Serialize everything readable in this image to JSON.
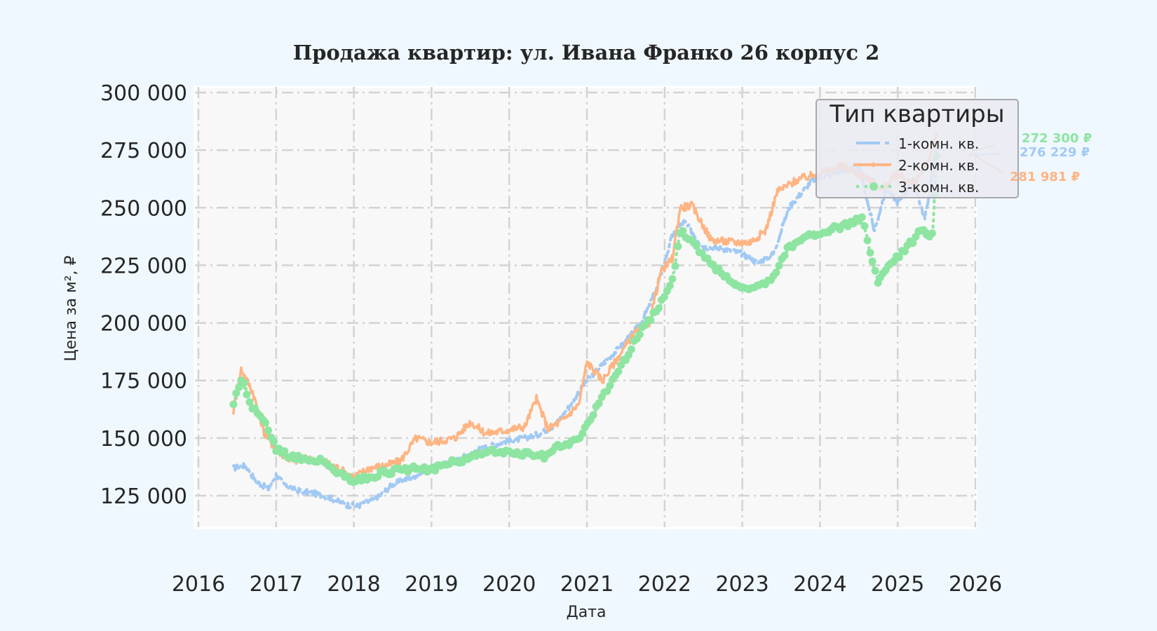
{
  "chart_data": {
    "type": "line",
    "title": "Продажа квартир: ул. Ивана Франко 26 корпус 2",
    "xlabel": "Дата",
    "ylabel": "Цена за м², ₽",
    "xlim": [
      2016.0,
      2026.0
    ],
    "ylim": [
      111000,
      302000
    ],
    "x_ticks": [
      "2016",
      "2017",
      "2018",
      "2019",
      "2020",
      "2021",
      "2022",
      "2023",
      "2024",
      "2025",
      "2026"
    ],
    "y_ticks": [
      "125 000",
      "150 000",
      "175 000",
      "200 000",
      "225 000",
      "250 000",
      "275 000",
      "300 000"
    ],
    "y_tick_values": [
      125000,
      150000,
      175000,
      200000,
      225000,
      250000,
      275000,
      300000
    ],
    "grid": true,
    "legend": {
      "title": "Тип квартиры",
      "position": "upper right"
    },
    "series": [
      {
        "name": "1-комн. кв.",
        "color": "#a1c9f4",
        "style": "dashdot",
        "x": [
          2016.45,
          2016.6,
          2016.75,
          2016.9,
          2017.0,
          2017.1,
          2017.3,
          2017.5,
          2017.7,
          2017.9,
          2018.05,
          2018.3,
          2018.5,
          2018.75,
          2019.0,
          2019.3,
          2019.6,
          2019.9,
          2020.2,
          2020.4,
          2020.6,
          2020.8,
          2020.95,
          2021.2,
          2021.5,
          2021.7,
          2021.9,
          2022.1,
          2022.25,
          2022.5,
          2022.8,
          2023.0,
          2023.2,
          2023.4,
          2023.6,
          2023.9,
          2024.2,
          2024.5,
          2024.7,
          2024.85,
          2025.0,
          2025.2,
          2025.35,
          2025.5
        ],
        "values": [
          137000,
          138000,
          131000,
          128000,
          134000,
          130000,
          127000,
          126000,
          124000,
          121000,
          120500,
          124000,
          130000,
          133000,
          137000,
          140000,
          145000,
          148000,
          150000,
          152000,
          156000,
          165000,
          173000,
          182000,
          192000,
          200000,
          215000,
          238000,
          244000,
          233000,
          232000,
          230000,
          226000,
          230000,
          250000,
          262000,
          265000,
          268000,
          240000,
          258000,
          252000,
          262000,
          245000,
          276229
        ]
      },
      {
        "name": "2-комн. кв.",
        "color": "#ffb482",
        "style": "solid-with-markers",
        "x": [
          2016.45,
          2016.55,
          2016.7,
          2016.85,
          2017.0,
          2017.2,
          2017.4,
          2017.6,
          2017.8,
          2018.0,
          2018.2,
          2018.4,
          2018.6,
          2018.8,
          2019.0,
          2019.3,
          2019.5,
          2019.7,
          2019.9,
          2020.2,
          2020.35,
          2020.5,
          2020.7,
          2020.9,
          2021.0,
          2021.2,
          2021.4,
          2021.6,
          2021.8,
          2021.95,
          2022.1,
          2022.2,
          2022.35,
          2022.6,
          2022.9,
          2023.1,
          2023.3,
          2023.45,
          2023.7,
          2024.0,
          2024.3,
          2024.6,
          2024.8,
          2025.0,
          2025.2,
          2025.4,
          2025.5
        ],
        "values": [
          162000,
          180000,
          170000,
          152000,
          145000,
          140000,
          141000,
          140000,
          137000,
          133000,
          137000,
          138000,
          140000,
          150000,
          148000,
          150000,
          157000,
          152000,
          153000,
          155000,
          167000,
          154000,
          158000,
          165000,
          183000,
          175000,
          185000,
          195000,
          200000,
          222000,
          228000,
          250000,
          251000,
          236000,
          235000,
          235000,
          240000,
          257000,
          262000,
          265000,
          268000,
          263000,
          258000,
          265000,
          260000,
          270000,
          281981
        ]
      },
      {
        "name": "3-комн. кв.",
        "color": "#8de5a1",
        "style": "dotted-with-markers",
        "x": [
          2016.45,
          2016.55,
          2016.7,
          2016.85,
          2017.0,
          2017.2,
          2017.4,
          2017.6,
          2017.8,
          2018.0,
          2018.2,
          2018.4,
          2018.6,
          2018.8,
          2019.0,
          2019.3,
          2019.5,
          2019.7,
          2019.9,
          2020.1,
          2020.3,
          2020.45,
          2020.6,
          2020.8,
          2020.95,
          2021.2,
          2021.5,
          2021.7,
          2021.9,
          2022.1,
          2022.2,
          2022.35,
          2022.6,
          2022.8,
          2023.0,
          2023.2,
          2023.4,
          2023.6,
          2023.85,
          2024.1,
          2024.3,
          2024.55,
          2024.65,
          2024.75,
          2024.9,
          2025.1,
          2025.3,
          2025.45,
          2025.5
        ],
        "values": [
          165000,
          176000,
          163000,
          157000,
          145000,
          142000,
          141000,
          140000,
          135000,
          131000,
          133000,
          135000,
          136000,
          137000,
          136000,
          140000,
          141000,
          145000,
          144000,
          143000,
          143000,
          142000,
          146000,
          148000,
          152000,
          168000,
          185000,
          197000,
          205000,
          218000,
          240000,
          236000,
          225000,
          220000,
          215000,
          216000,
          220000,
          233000,
          238000,
          240000,
          242000,
          246000,
          230000,
          218000,
          225000,
          232000,
          240000,
          238000,
          272300
        ]
      }
    ],
    "annotations": [
      {
        "text": "272 300 ₽",
        "color": "#8de5a1",
        "series": "3-комн. кв."
      },
      {
        "text": "276 229 ₽",
        "color": "#a1c9f4",
        "series": "1-комн. кв."
      },
      {
        "text": "281 981 ₽",
        "color": "#ffb482",
        "series": "2-комн. кв."
      }
    ]
  },
  "labels": {
    "title": "Продажа квартир: ул. Ивана Франко 26 корпус 2",
    "xlabel": "Дата",
    "ylabel": "Цена за м², ₽",
    "legend_title": "Тип квартиры",
    "legend_items": [
      "1-комн. кв.",
      "2-комн. кв.",
      "3-комн. кв."
    ],
    "annot_green": "272 300 ₽",
    "annot_blue": "276 229 ₽",
    "annot_orange": "281 981 ₽"
  }
}
